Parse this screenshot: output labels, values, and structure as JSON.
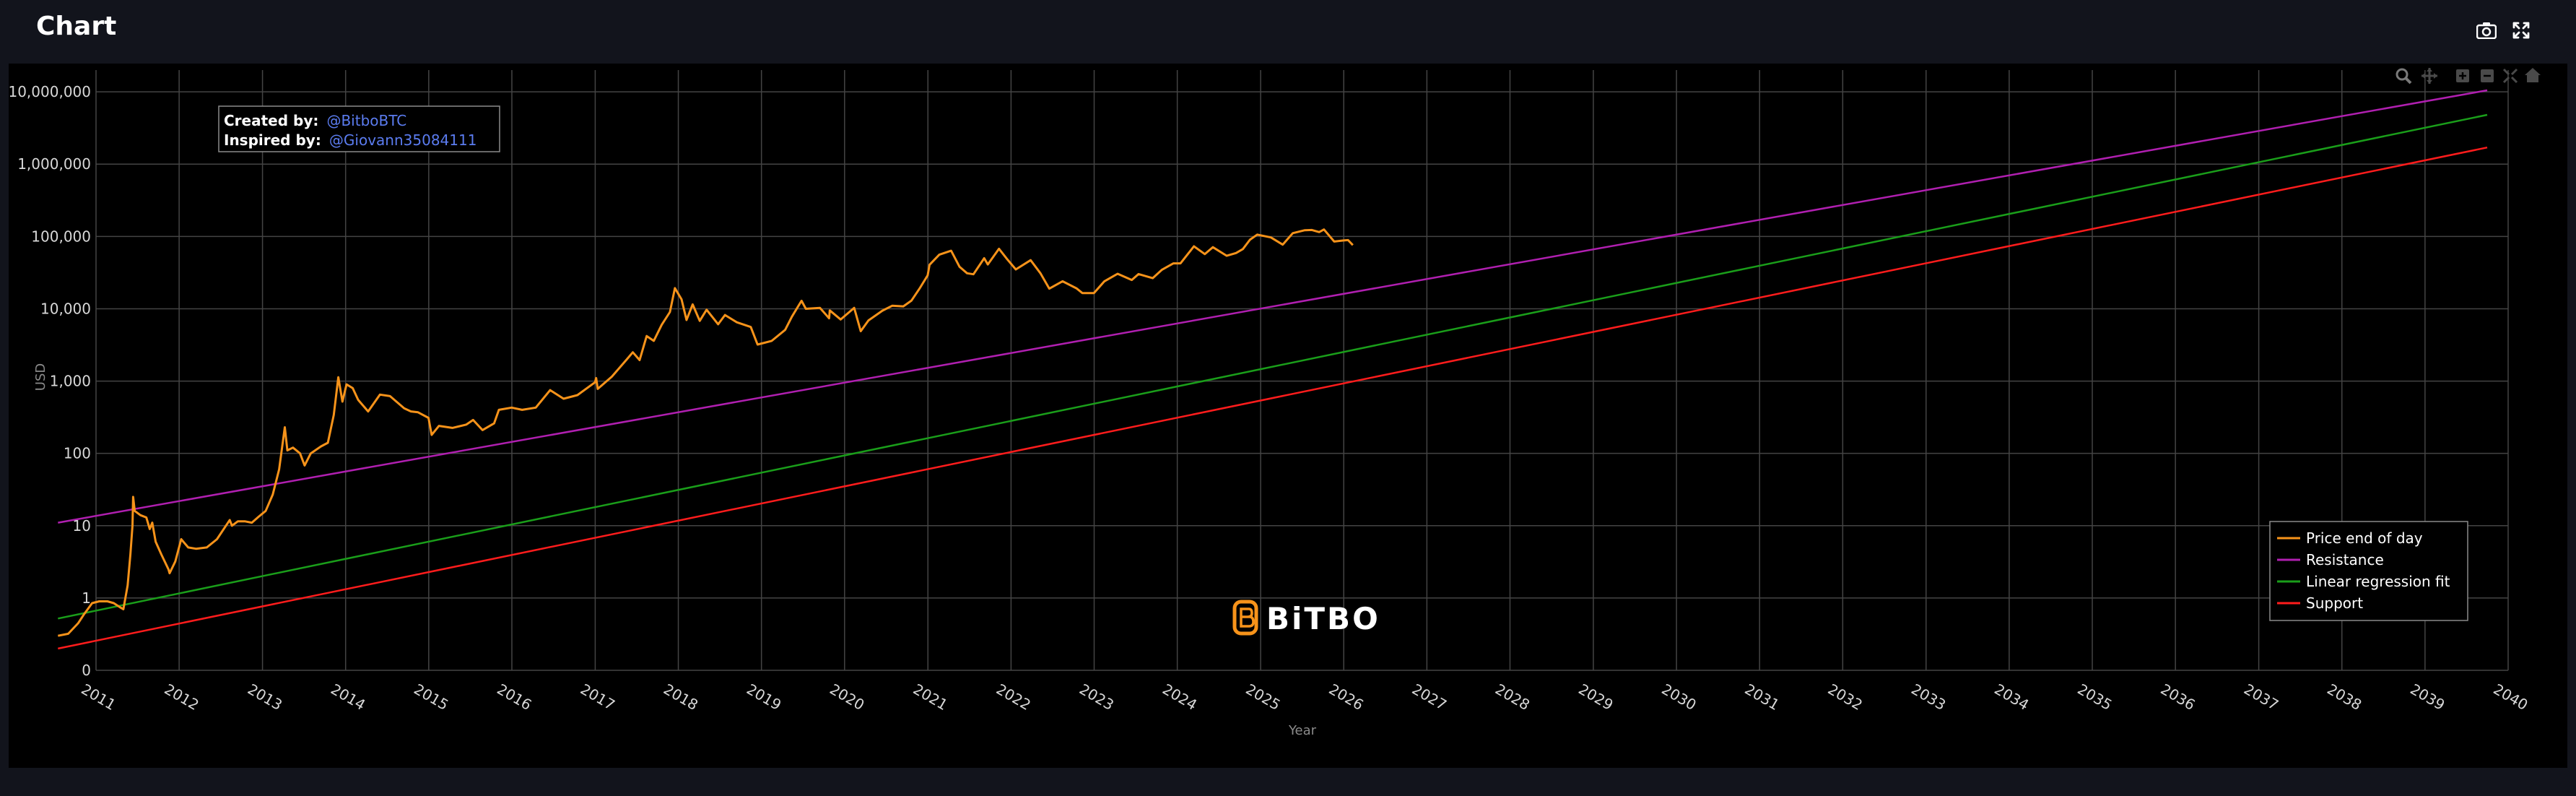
{
  "header": {
    "title": "Chart",
    "camera_icon": "camera-icon",
    "fullscreen_icon": "expand-icon"
  },
  "modebar": {
    "icons": [
      "zoom-icon",
      "pan-icon",
      "zoom-in-icon",
      "zoom-out-icon",
      "autoscale-icon",
      "reset-axes-icon"
    ]
  },
  "annotation": {
    "created_label": "Created by:",
    "created_value": "@BitboBTC",
    "inspired_label": "Inspired by:",
    "inspired_value": "@Giovann35084111"
  },
  "watermark": {
    "text": "BiTBO",
    "color": "#f7931a"
  },
  "chart_data": {
    "type": "line",
    "xlabel": "Year",
    "ylabel": "USD",
    "y_scale": "log",
    "ylim": [
      0.1,
      20000000
    ],
    "xlim": [
      "2011-01-01",
      "2040-01-01"
    ],
    "y_ticks": [
      {
        "value": 0.1,
        "label": "0"
      },
      {
        "value": 1,
        "label": "1"
      },
      {
        "value": 10,
        "label": "10"
      },
      {
        "value": 100,
        "label": "100"
      },
      {
        "value": 1000,
        "label": "1,000"
      },
      {
        "value": 10000,
        "label": "10,000"
      },
      {
        "value": 100000,
        "label": "100,000"
      },
      {
        "value": 1000000,
        "label": "1,000,000"
      },
      {
        "value": 10000000,
        "label": "10,000,000"
      }
    ],
    "x_ticks": [
      "2011",
      "2012",
      "2013",
      "2014",
      "2015",
      "2016",
      "2017",
      "2018",
      "2019",
      "2020",
      "2021",
      "2022",
      "2023",
      "2024",
      "2025",
      "2026",
      "2027",
      "2028",
      "2029",
      "2030",
      "2031",
      "2032",
      "2033",
      "2034",
      "2035",
      "2036",
      "2037",
      "2038",
      "2039",
      "2040"
    ],
    "grid": true,
    "legend_position": "bottom-right",
    "series": [
      {
        "name": "Price end of day",
        "color": "#f7931a",
        "points": [
          [
            "2010-07-18",
            0.3
          ],
          [
            "2010-09-01",
            0.32
          ],
          [
            "2010-10-15",
            0.45
          ],
          [
            "2010-11-10",
            0.6
          ],
          [
            "2010-12-15",
            0.85
          ],
          [
            "2011-01-15",
            0.9
          ],
          [
            "2011-02-20",
            0.9
          ],
          [
            "2011-03-20",
            0.85
          ],
          [
            "2011-04-15",
            0.75
          ],
          [
            "2011-05-01",
            0.7
          ],
          [
            "2011-05-20",
            1.5
          ],
          [
            "2011-06-01",
            4
          ],
          [
            "2011-06-10",
            10
          ],
          [
            "2011-06-13",
            25
          ],
          [
            "2011-06-20",
            16
          ],
          [
            "2011-07-15",
            14
          ],
          [
            "2011-08-10",
            13
          ],
          [
            "2011-08-25",
            9
          ],
          [
            "2011-09-05",
            11
          ],
          [
            "2011-09-20",
            6
          ],
          [
            "2011-10-15",
            4
          ],
          [
            "2011-11-15",
            2.5
          ],
          [
            "2011-11-20",
            2.2
          ],
          [
            "2011-12-15",
            3.2
          ],
          [
            "2012-01-10",
            6.5
          ],
          [
            "2012-02-10",
            5
          ],
          [
            "2012-03-15",
            4.8
          ],
          [
            "2012-05-01",
            5
          ],
          [
            "2012-06-15",
            6.5
          ],
          [
            "2012-08-10",
            12
          ],
          [
            "2012-08-20",
            10
          ],
          [
            "2012-09-15",
            11.5
          ],
          [
            "2012-10-15",
            11.5
          ],
          [
            "2012-11-15",
            11
          ],
          [
            "2012-12-15",
            13.3
          ],
          [
            "2013-01-15",
            16
          ],
          [
            "2013-02-15",
            27
          ],
          [
            "2013-03-15",
            60
          ],
          [
            "2013-04-09",
            230
          ],
          [
            "2013-04-20",
            110
          ],
          [
            "2013-05-15",
            120
          ],
          [
            "2013-06-15",
            100
          ],
          [
            "2013-07-05",
            68
          ],
          [
            "2013-08-01",
            100
          ],
          [
            "2013-09-15",
            125
          ],
          [
            "2013-10-15",
            140
          ],
          [
            "2013-11-10",
            340
          ],
          [
            "2013-11-30",
            1130
          ],
          [
            "2013-12-18",
            520
          ],
          [
            "2014-01-05",
            900
          ],
          [
            "2014-02-01",
            800
          ],
          [
            "2014-02-25",
            550
          ],
          [
            "2014-04-10",
            380
          ],
          [
            "2014-06-01",
            650
          ],
          [
            "2014-07-15",
            620
          ],
          [
            "2014-09-15",
            420
          ],
          [
            "2014-10-15",
            380
          ],
          [
            "2014-11-15",
            370
          ],
          [
            "2014-12-31",
            310
          ],
          [
            "2015-01-14",
            180
          ],
          [
            "2015-02-15",
            240
          ],
          [
            "2015-04-15",
            225
          ],
          [
            "2015-06-15",
            250
          ],
          [
            "2015-07-15",
            290
          ],
          [
            "2015-08-25",
            210
          ],
          [
            "2015-10-15",
            260
          ],
          [
            "2015-11-05",
            400
          ],
          [
            "2015-12-31",
            430
          ],
          [
            "2016-02-15",
            400
          ],
          [
            "2016-04-15",
            430
          ],
          [
            "2016-06-17",
            750
          ],
          [
            "2016-08-15",
            570
          ],
          [
            "2016-10-15",
            640
          ],
          [
            "2016-12-31",
            960
          ],
          [
            "2017-01-05",
            1100
          ],
          [
            "2017-01-12",
            780
          ],
          [
            "2017-03-15",
            1150
          ],
          [
            "2017-05-20",
            2000
          ],
          [
            "2017-06-15",
            2500
          ],
          [
            "2017-07-15",
            1950
          ],
          [
            "2017-08-15",
            4200
          ],
          [
            "2017-09-15",
            3600
          ],
          [
            "2017-10-20",
            6000
          ],
          [
            "2017-11-25",
            9000
          ],
          [
            "2017-12-17",
            19300
          ],
          [
            "2018-01-15",
            13500
          ],
          [
            "2018-02-06",
            7000
          ],
          [
            "2018-03-05",
            11500
          ],
          [
            "2018-04-05",
            6800
          ],
          [
            "2018-05-05",
            9700
          ],
          [
            "2018-06-25",
            6100
          ],
          [
            "2018-07-25",
            8200
          ],
          [
            "2018-09-15",
            6500
          ],
          [
            "2018-11-15",
            5600
          ],
          [
            "2018-12-15",
            3200
          ],
          [
            "2019-02-15",
            3600
          ],
          [
            "2019-04-15",
            5100
          ],
          [
            "2019-05-15",
            7800
          ],
          [
            "2019-06-26",
            12900
          ],
          [
            "2019-07-15",
            10000
          ],
          [
            "2019-09-15",
            10300
          ],
          [
            "2019-10-25",
            7400
          ],
          [
            "2019-10-28",
            9500
          ],
          [
            "2019-12-15",
            7100
          ],
          [
            "2020-02-12",
            10300
          ],
          [
            "2020-03-12",
            4900
          ],
          [
            "2020-04-15",
            6900
          ],
          [
            "2020-06-15",
            9400
          ],
          [
            "2020-07-28",
            11000
          ],
          [
            "2020-09-15",
            10800
          ],
          [
            "2020-10-21",
            13000
          ],
          [
            "2020-11-25",
            19000
          ],
          [
            "2020-12-31",
            29000
          ],
          [
            "2021-01-08",
            40500
          ],
          [
            "2021-02-20",
            56000
          ],
          [
            "2021-04-13",
            63500
          ],
          [
            "2021-05-20",
            38000
          ],
          [
            "2021-06-22",
            31000
          ],
          [
            "2021-07-20",
            30000
          ],
          [
            "2021-09-05",
            50000
          ],
          [
            "2021-09-21",
            41000
          ],
          [
            "2021-11-09",
            67500
          ],
          [
            "2021-12-15",
            48500
          ],
          [
            "2022-01-22",
            35000
          ],
          [
            "2022-03-28",
            47000
          ],
          [
            "2022-05-10",
            31000
          ],
          [
            "2022-06-18",
            19000
          ],
          [
            "2022-08-15",
            24000
          ],
          [
            "2022-10-15",
            19200
          ],
          [
            "2022-11-10",
            16500
          ],
          [
            "2022-12-31",
            16500
          ],
          [
            "2023-02-15",
            24000
          ],
          [
            "2023-04-14",
            30500
          ],
          [
            "2023-06-15",
            25000
          ],
          [
            "2023-07-15",
            30200
          ],
          [
            "2023-09-15",
            26500
          ],
          [
            "2023-10-25",
            34500
          ],
          [
            "2023-12-15",
            42500
          ],
          [
            "2024-01-15",
            42500
          ],
          [
            "2024-03-14",
            73000
          ],
          [
            "2024-05-01",
            57000
          ],
          [
            "2024-06-05",
            71000
          ],
          [
            "2024-08-05",
            54000
          ],
          [
            "2024-09-15",
            59000
          ],
          [
            "2024-10-15",
            67000
          ],
          [
            "2024-11-15",
            90000
          ],
          [
            "2024-12-17",
            106000
          ],
          [
            "2025-02-15",
            97000
          ],
          [
            "2025-04-08",
            77000
          ],
          [
            "2025-05-22",
            111000
          ],
          [
            "2025-07-14",
            122000
          ],
          [
            "2025-08-14",
            123000
          ],
          [
            "2025-09-15",
            115000
          ],
          [
            "2025-10-06",
            125000
          ],
          [
            "2025-11-20",
            85000
          ],
          [
            "2025-12-31",
            88000
          ],
          [
            "2026-01-20",
            89000
          ],
          [
            "2026-02-10",
            76000
          ]
        ]
      },
      {
        "name": "Resistance",
        "color": "#b01fb0",
        "points": [
          [
            "2010-07-18",
            11
          ],
          [
            "2039-10-01",
            10500000
          ]
        ]
      },
      {
        "name": "Linear regression fit",
        "color": "#1a9e1a",
        "points": [
          [
            "2010-07-18",
            0.52
          ],
          [
            "2039-10-01",
            4800000
          ]
        ]
      },
      {
        "name": "Support",
        "color": "#ff1c1c",
        "points": [
          [
            "2010-07-18",
            0.2
          ],
          [
            "2039-10-01",
            1700000
          ]
        ]
      }
    ]
  }
}
